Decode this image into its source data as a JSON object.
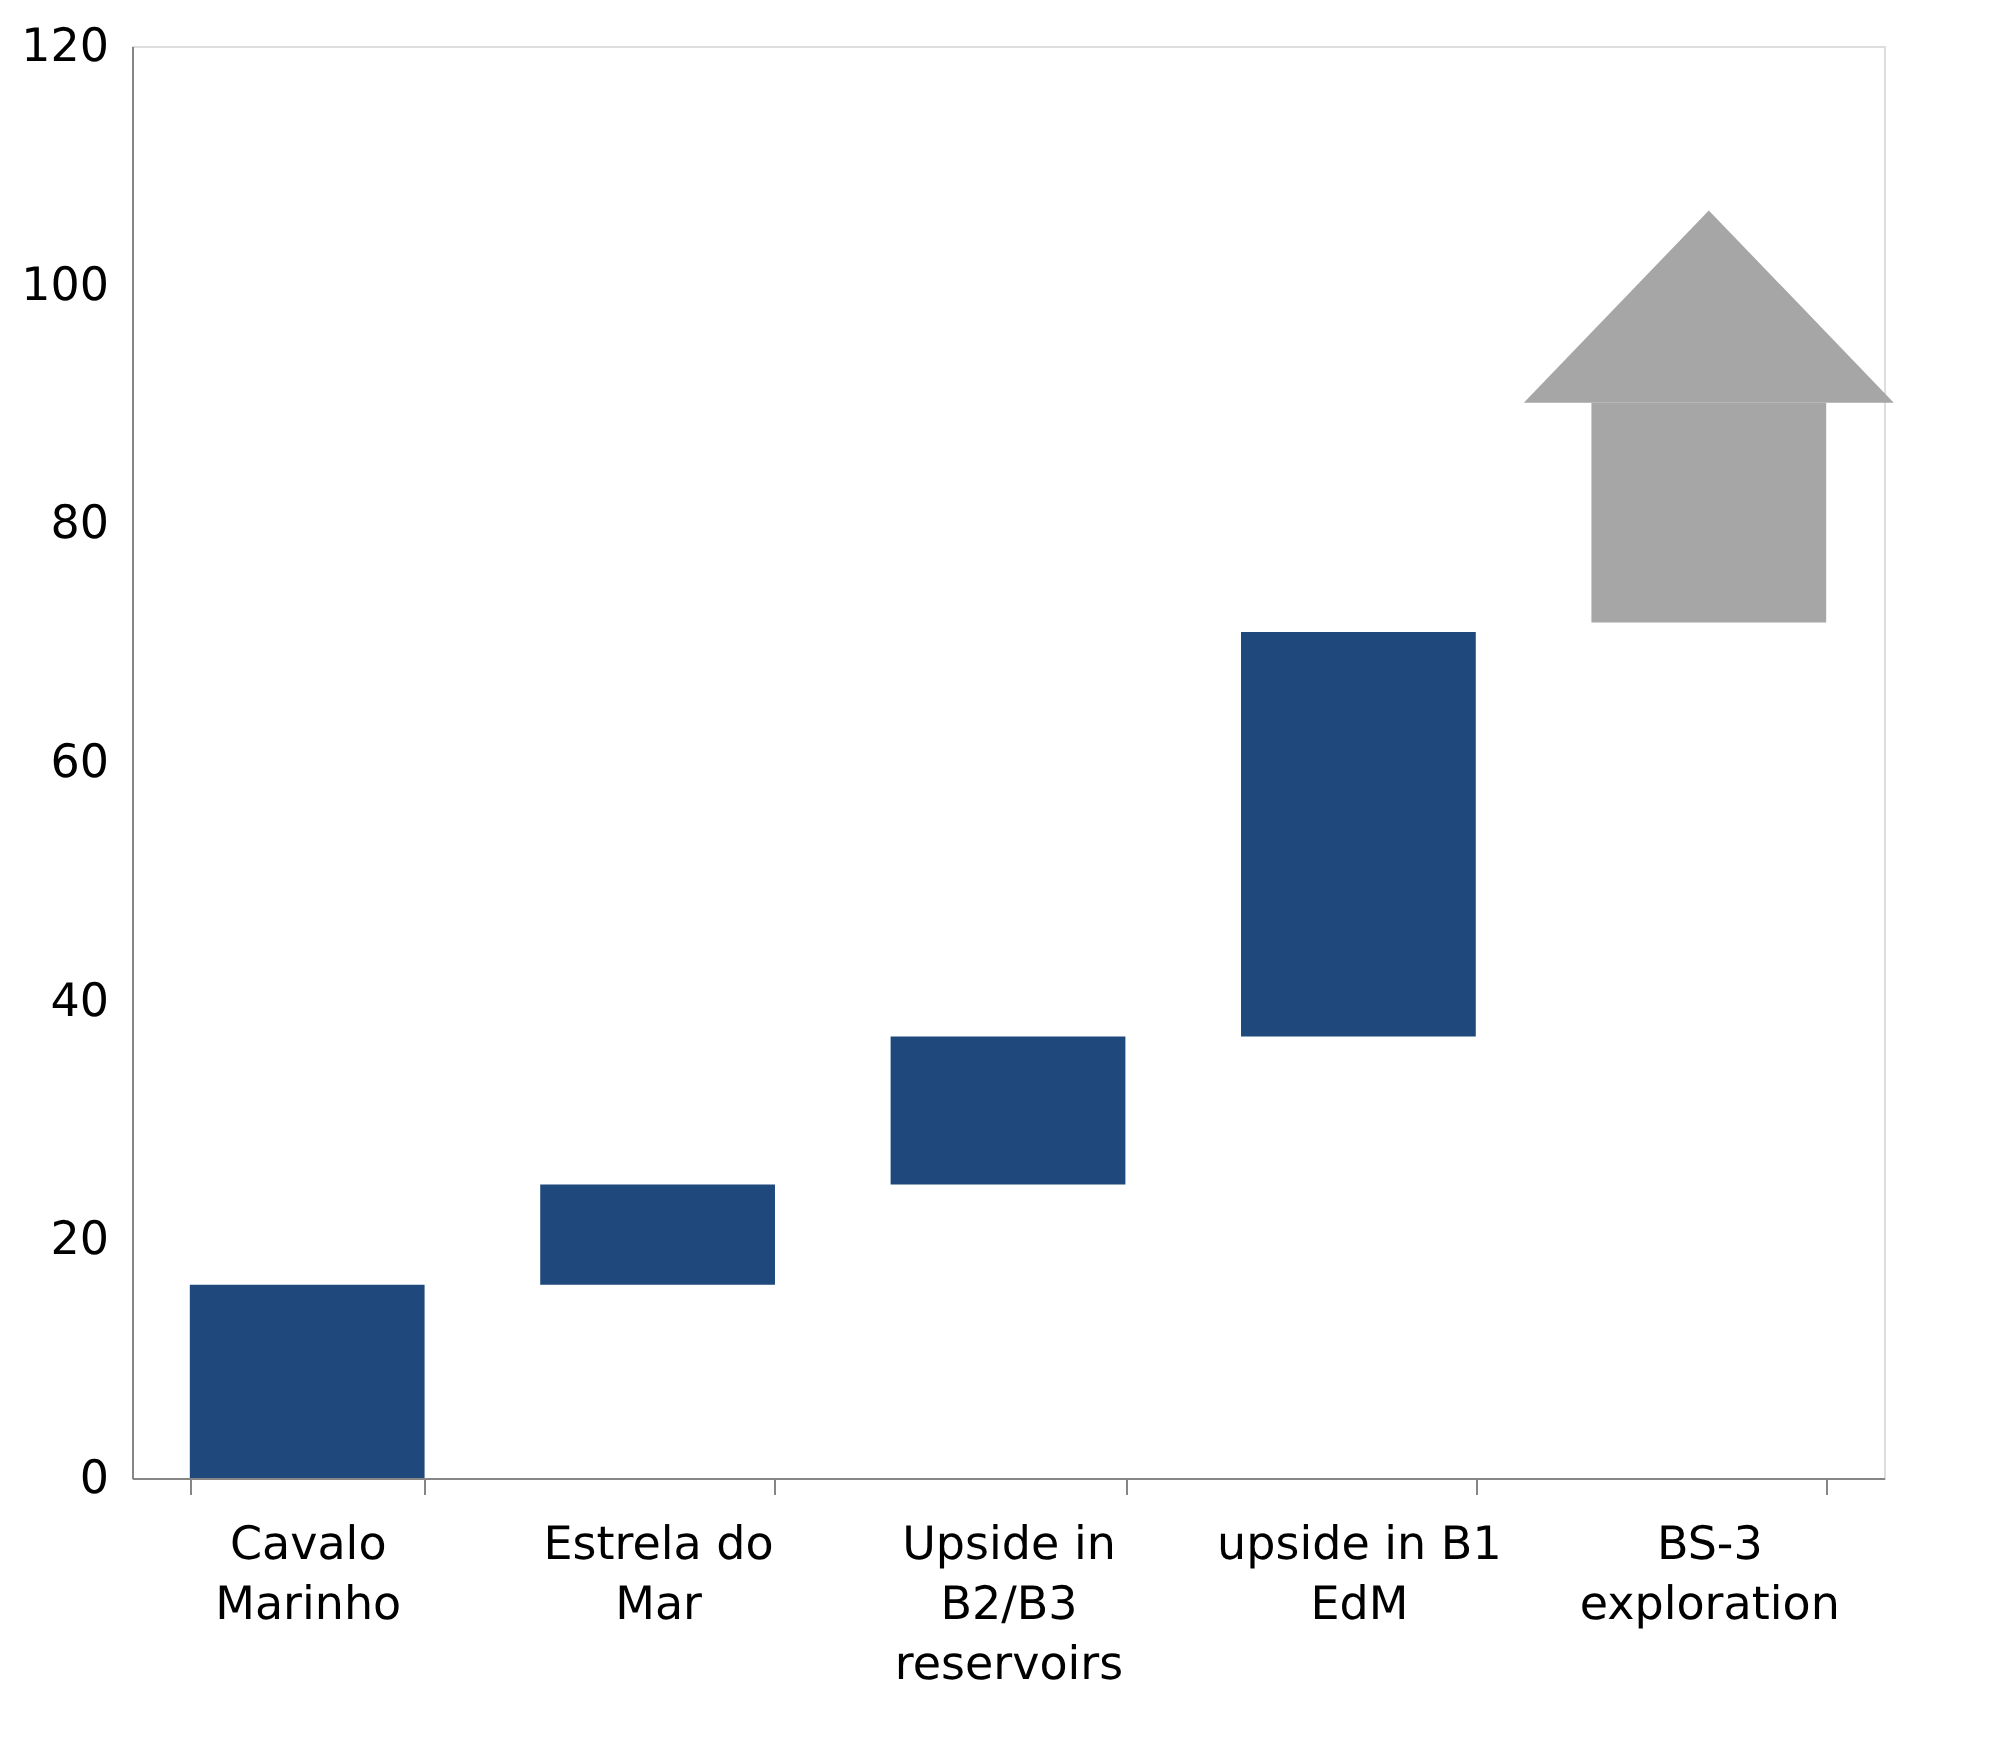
{
  "chart_data": {
    "type": "bar",
    "categories": [
      "Cavalo\nMarinho",
      "Estrela do\nMar",
      "Upside in\nB2/B3\nreservoirs",
      "upside in B1\nEdM",
      "BS-3\nexploration"
    ],
    "base": [
      0,
      16.2,
      24.6,
      37,
      71.7
    ],
    "values": [
      16.2,
      8.4,
      12.4,
      33.9,
      18.4
    ],
    "colors": [
      "#1f497d",
      "#1f497d",
      "#1f497d",
      "#1f497d",
      "#a6a6a6"
    ],
    "ylim": [
      0,
      120
    ],
    "yticks": [
      0,
      20,
      40,
      60,
      80,
      100,
      120
    ],
    "grid": false
  }
}
